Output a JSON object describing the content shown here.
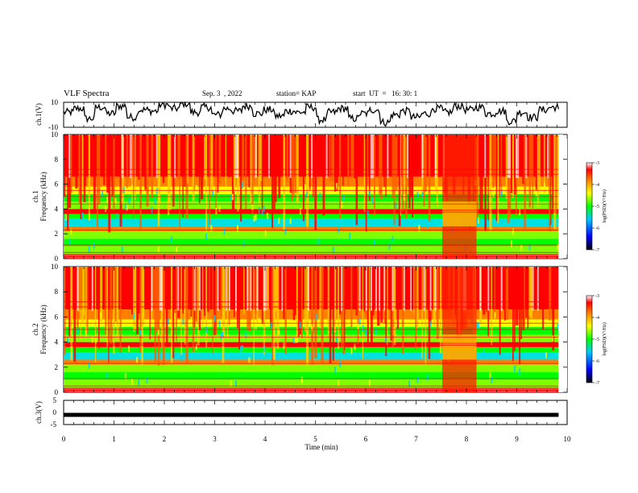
{
  "header": {
    "title": "VLF Spectra",
    "date": "Sep. 3  , 2022",
    "station": "station= KAP",
    "start": "start  UT  =   16: 30: 1"
  },
  "chart_data": [
    {
      "type": "line",
      "panel": "ch1-waveform",
      "ylabel": "ch.1(V)",
      "ylim": [
        -10,
        10
      ],
      "y_ticks": [
        "10",
        "-10"
      ],
      "x_range_min": [
        0,
        9.83
      ],
      "series_note": "noisy waveform fluctuating roughly between -8 and 8 V",
      "sample_values": [
        2,
        5,
        -3,
        6,
        1,
        7,
        -2,
        4,
        3,
        8,
        5,
        9,
        2,
        6,
        0,
        5,
        3,
        7,
        1,
        4,
        -1,
        3,
        2,
        6,
        -4,
        2,
        5,
        -3,
        1,
        4,
        -6,
        0,
        3,
        -2,
        1,
        5,
        2,
        7,
        4,
        6,
        1,
        3,
        -5,
        2,
        -2,
        4,
        6,
        3
      ]
    },
    {
      "type": "heatmap",
      "panel": "ch1-spectrogram",
      "ylabel": "ch.1\nFrequency  (kHz)",
      "ylim": [
        0,
        10
      ],
      "y_ticks": [
        "0",
        "2",
        "4",
        "6",
        "8",
        "10"
      ],
      "x_range_min": [
        0,
        9.83
      ],
      "colorbar": {
        "label": "log(PSD)(V²/Hz)",
        "range": [
          -7,
          -3
        ],
        "ticks": [
          "-3",
          "-4",
          "-5",
          "-6",
          "-7"
        ]
      }
    },
    {
      "type": "heatmap",
      "panel": "ch2-spectrogram",
      "ylabel": "ch.2\nFrequency  (kHz)",
      "ylim": [
        0,
        10
      ],
      "y_ticks": [
        "0",
        "2",
        "4",
        "6",
        "8",
        "10"
      ],
      "x_range_min": [
        0,
        9.83
      ],
      "colorbar": {
        "label": "log(PSD)(V²/Hz)",
        "range": [
          -7,
          -3
        ],
        "ticks": [
          "-3",
          "-4",
          "-5",
          "-6",
          "-7"
        ]
      }
    },
    {
      "type": "line",
      "panel": "ch3-signal",
      "ylabel": "ch.3(V)",
      "ylim": [
        -5,
        5
      ],
      "y_ticks": [
        "5",
        "0",
        "-5"
      ],
      "x_range_min": [
        0,
        9.83
      ],
      "series_note": "nearly constant level near -1 V",
      "level": -1
    }
  ],
  "x_axis": {
    "label": "Time  (min)",
    "range": [
      0,
      10
    ],
    "ticks": [
      "0",
      "1",
      "2",
      "3",
      "4",
      "5",
      "6",
      "7",
      "8",
      "9",
      "10"
    ]
  },
  "colors": {
    "cmap": [
      "#000000",
      "#0000ff",
      "#00c8ff",
      "#00ff00",
      "#ffff00",
      "#ff8000",
      "#ff0000",
      "#ffffff"
    ]
  }
}
